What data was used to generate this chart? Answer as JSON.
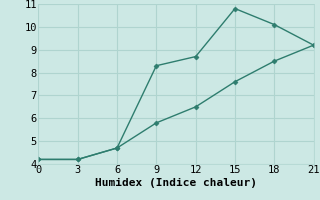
{
  "xlabel": "Humidex (Indice chaleur)",
  "ylabel": "",
  "line1_x": [
    0,
    3,
    6,
    9,
    12,
    15,
    18,
    21
  ],
  "line1_y": [
    4.2,
    4.2,
    4.7,
    8.3,
    8.7,
    10.8,
    10.1,
    9.2
  ],
  "line2_x": [
    0,
    3,
    6,
    9,
    12,
    15,
    18,
    21
  ],
  "line2_y": [
    4.2,
    4.2,
    4.7,
    5.8,
    6.5,
    7.6,
    8.5,
    9.2
  ],
  "line_color": "#2e7d6e",
  "bg_color": "#cce8e4",
  "grid_color": "#afd4cf",
  "xlim": [
    0,
    21
  ],
  "ylim": [
    4,
    11
  ],
  "xticks": [
    0,
    3,
    6,
    9,
    12,
    15,
    18,
    21
  ],
  "yticks": [
    4,
    5,
    6,
    7,
    8,
    9,
    10,
    11
  ],
  "marker": "D",
  "markersize": 2.5,
  "linewidth": 1.0,
  "xlabel_fontsize": 8,
  "tick_fontsize": 7.5
}
